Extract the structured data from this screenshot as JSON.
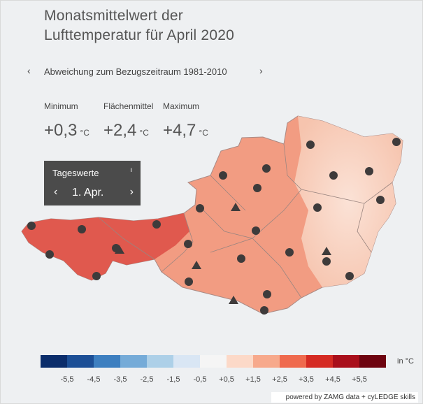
{
  "title_line1": "Monatsmittelwert der",
  "title_line2": "Lufttemperatur für April 2020",
  "subtitle": "Abweichung zum Bezugszeitraum 1981-2010",
  "nav_prev_icon": "‹",
  "nav_next_icon": "›",
  "stats": {
    "minimum_label": "Minimum",
    "minimum_value": "+0,3",
    "mean_label": "Flächenmittel",
    "mean_value": "+2,4",
    "maximum_label": "Maximum",
    "maximum_value": "+4,7",
    "unit": "°C"
  },
  "daily": {
    "label": "Tageswerte",
    "info_icon": "ı",
    "date": "1. Apr.",
    "prev": "‹",
    "next": "›"
  },
  "legend": {
    "colors": [
      "#0b2d6b",
      "#1c4f96",
      "#3d7fc0",
      "#75abd8",
      "#add0e8",
      "#d9e6f4",
      "#f5f5f5",
      "#fcd9c8",
      "#f7a98c",
      "#ef6a4e",
      "#d52b23",
      "#a90f1b",
      "#6e0410"
    ],
    "ticks": [
      "-5,5",
      "-4,5",
      "-3,5",
      "-2,5",
      "-1,5",
      "-0,5",
      "+0,5",
      "+1,5",
      "+2,5",
      "+3,5",
      "+4,5",
      "+5,5"
    ],
    "unit": "in °C"
  },
  "credit": "powered by ZAMG data + cyLEDGE skills"
}
